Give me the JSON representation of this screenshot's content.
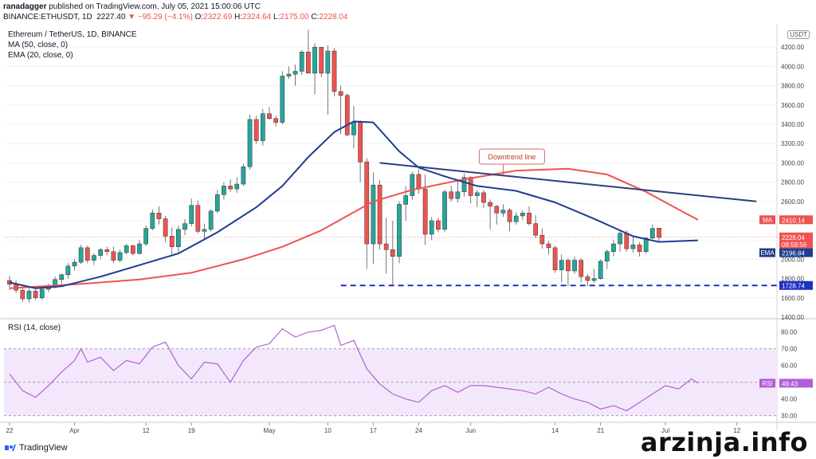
{
  "header": {
    "author": "ranadagger",
    "published": "published on TradingView.com, July 05, 2021 15:00:06 UTC",
    "symbol": "BINANCE:ETHUSDT, 1D",
    "last": "2227.40",
    "change": "−95.29 (−4.1%)",
    "o_label": "O:",
    "o_value": "2322.69",
    "h_label": "H:",
    "h_value": "2324.64",
    "l_label": "L:",
    "l_value": "2175.00",
    "c_label": "C:",
    "c_value": "2228.04"
  },
  "indicators": {
    "pair": "Ethereum / TetherUS, 1D, BINANCE",
    "ma": "MA (50, close, 0)",
    "ema": "EMA (20, close, 0)",
    "rsi": "RSI (14, close)"
  },
  "unit": "USDT",
  "annotation": "Downtrend line",
  "badges": {
    "ma_label": "MA",
    "ma_value": "2410.14",
    "price_value": "2228.04",
    "countdown": "08:59:56",
    "ema_label": "EMA",
    "ema_value": "2196.84",
    "support_value": "1728.74",
    "rsi_label": "RSI",
    "rsi_value": "49.43"
  },
  "logo_text": "TradingView",
  "watermark": "arzinja.info",
  "colors": {
    "up": "#26a69a",
    "down": "#ef5350",
    "ma": "#ef5350",
    "ema": "#1f3d8f",
    "trendline": "#2b3f7e",
    "support": "#1e2fc4",
    "rsi": "#b35fd9",
    "rsi_band": "#f3e8fb"
  },
  "chart_data": {
    "type": "candlestick",
    "price_axis_ticks": [
      1400,
      1600,
      1800,
      2000,
      2200,
      2400,
      2600,
      2800,
      3000,
      3200,
      3400,
      3600,
      3800,
      4000,
      4200
    ],
    "price_axis_labels": [
      "1400.00",
      "1600.00",
      "1800.00",
      "2000.00",
      "2200.00",
      "2400.00",
      "2600.00",
      "2800.00",
      "3000.00",
      "3200.00",
      "3400.00",
      "3600.00",
      "3800.00",
      "4000.00",
      "4200.00"
    ],
    "price_ylim": [
      1400,
      4400
    ],
    "rsi_axis_ticks": [
      30,
      40,
      50,
      60,
      70,
      80
    ],
    "rsi_axis_labels": [
      "30.00",
      "40.00",
      "50.00",
      "60.00",
      "70.00",
      "80.00"
    ],
    "rsi_ylim": [
      27,
      87
    ],
    "rsi_band": [
      30,
      70
    ],
    "x_axis_labels": [
      {
        "label": "22",
        "day": 0
      },
      {
        "label": "Apr",
        "day": 10
      },
      {
        "label": "12",
        "day": 21
      },
      {
        "label": "19",
        "day": 28
      },
      {
        "label": "May",
        "day": 40
      },
      {
        "label": "10",
        "day": 49
      },
      {
        "label": "17",
        "day": 56
      },
      {
        "label": "24",
        "day": 63
      },
      {
        "label": "Jun",
        "day": 71
      },
      {
        "label": "14",
        "day": 84
      },
      {
        "label": "21",
        "day": 91
      },
      {
        "label": "Jul",
        "day": 101
      },
      {
        "label": "12",
        "day": 112
      }
    ],
    "candles": [
      {
        "o": 1780,
        "h": 1830,
        "l": 1680,
        "c": 1740
      },
      {
        "o": 1740,
        "h": 1780,
        "l": 1650,
        "c": 1680
      },
      {
        "o": 1680,
        "h": 1720,
        "l": 1560,
        "c": 1590
      },
      {
        "o": 1590,
        "h": 1700,
        "l": 1550,
        "c": 1670
      },
      {
        "o": 1670,
        "h": 1710,
        "l": 1580,
        "c": 1600
      },
      {
        "o": 1600,
        "h": 1720,
        "l": 1580,
        "c": 1690
      },
      {
        "o": 1690,
        "h": 1750,
        "l": 1660,
        "c": 1710
      },
      {
        "o": 1710,
        "h": 1820,
        "l": 1700,
        "c": 1790
      },
      {
        "o": 1790,
        "h": 1850,
        "l": 1740,
        "c": 1840
      },
      {
        "o": 1840,
        "h": 1960,
        "l": 1800,
        "c": 1930
      },
      {
        "o": 1930,
        "h": 2000,
        "l": 1880,
        "c": 1970
      },
      {
        "o": 1970,
        "h": 2150,
        "l": 1950,
        "c": 2120
      },
      {
        "o": 2120,
        "h": 2140,
        "l": 1960,
        "c": 1990
      },
      {
        "o": 1990,
        "h": 2060,
        "l": 1940,
        "c": 2040
      },
      {
        "o": 2040,
        "h": 2120,
        "l": 2000,
        "c": 2100
      },
      {
        "o": 2100,
        "h": 2130,
        "l": 2040,
        "c": 2080
      },
      {
        "o": 2080,
        "h": 2130,
        "l": 1960,
        "c": 1990
      },
      {
        "o": 1990,
        "h": 2100,
        "l": 1970,
        "c": 2070
      },
      {
        "o": 2070,
        "h": 2160,
        "l": 2050,
        "c": 2140
      },
      {
        "o": 2140,
        "h": 2150,
        "l": 2040,
        "c": 2060
      },
      {
        "o": 2060,
        "h": 2200,
        "l": 2050,
        "c": 2160
      },
      {
        "o": 2160,
        "h": 2350,
        "l": 2140,
        "c": 2320
      },
      {
        "o": 2320,
        "h": 2520,
        "l": 2300,
        "c": 2480
      },
      {
        "o": 2480,
        "h": 2550,
        "l": 2360,
        "c": 2420
      },
      {
        "o": 2420,
        "h": 2450,
        "l": 2180,
        "c": 2240
      },
      {
        "o": 2240,
        "h": 2330,
        "l": 2050,
        "c": 2130
      },
      {
        "o": 2130,
        "h": 2350,
        "l": 2070,
        "c": 2310
      },
      {
        "o": 2310,
        "h": 2420,
        "l": 2250,
        "c": 2370
      },
      {
        "o": 2370,
        "h": 2630,
        "l": 2340,
        "c": 2560
      },
      {
        "o": 2560,
        "h": 2610,
        "l": 2270,
        "c": 2290
      },
      {
        "o": 2290,
        "h": 2370,
        "l": 2210,
        "c": 2310
      },
      {
        "o": 2310,
        "h": 2520,
        "l": 2290,
        "c": 2500
      },
      {
        "o": 2500,
        "h": 2720,
        "l": 2480,
        "c": 2670
      },
      {
        "o": 2670,
        "h": 2800,
        "l": 2620,
        "c": 2760
      },
      {
        "o": 2760,
        "h": 2830,
        "l": 2700,
        "c": 2730
      },
      {
        "o": 2730,
        "h": 2850,
        "l": 2690,
        "c": 2780
      },
      {
        "o": 2780,
        "h": 2990,
        "l": 2760,
        "c": 2960
      },
      {
        "o": 2960,
        "h": 3500,
        "l": 2930,
        "c": 3450
      },
      {
        "o": 3450,
        "h": 3490,
        "l": 3200,
        "c": 3230
      },
      {
        "o": 3230,
        "h": 3560,
        "l": 3180,
        "c": 3510
      },
      {
        "o": 3510,
        "h": 3580,
        "l": 3450,
        "c": 3460
      },
      {
        "o": 3460,
        "h": 3490,
        "l": 3380,
        "c": 3420
      },
      {
        "o": 3420,
        "h": 3950,
        "l": 3400,
        "c": 3900
      },
      {
        "o": 3900,
        "h": 4000,
        "l": 3870,
        "c": 3920
      },
      {
        "o": 3920,
        "h": 4020,
        "l": 3800,
        "c": 3950
      },
      {
        "o": 3950,
        "h": 4170,
        "l": 3910,
        "c": 4150
      },
      {
        "o": 4150,
        "h": 4380,
        "l": 3950,
        "c": 3930
      },
      {
        "o": 3930,
        "h": 4240,
        "l": 3710,
        "c": 4200
      },
      {
        "o": 4200,
        "h": 4200,
        "l": 3890,
        "c": 3930
      },
      {
        "o": 3930,
        "h": 4220,
        "l": 3500,
        "c": 4160
      },
      {
        "o": 4160,
        "h": 4190,
        "l": 3690,
        "c": 3740
      },
      {
        "o": 3740,
        "h": 3800,
        "l": 3300,
        "c": 3700
      },
      {
        "o": 3700,
        "h": 3720,
        "l": 3280,
        "c": 3290
      },
      {
        "o": 3290,
        "h": 3590,
        "l": 3150,
        "c": 3420
      },
      {
        "o": 3420,
        "h": 3440,
        "l": 2800,
        "c": 3010
      },
      {
        "o": 3010,
        "h": 3050,
        "l": 1900,
        "c": 2160
      },
      {
        "o": 2160,
        "h": 2900,
        "l": 1950,
        "c": 2770
      },
      {
        "o": 2770,
        "h": 2820,
        "l": 2100,
        "c": 2160
      },
      {
        "o": 2160,
        "h": 2430,
        "l": 1850,
        "c": 2100
      },
      {
        "o": 2100,
        "h": 2400,
        "l": 1730,
        "c": 2030
      },
      {
        "o": 2030,
        "h": 2600,
        "l": 1960,
        "c": 2570
      },
      {
        "o": 2570,
        "h": 2760,
        "l": 2400,
        "c": 2660
      },
      {
        "o": 2660,
        "h": 2910,
        "l": 2620,
        "c": 2880
      },
      {
        "o": 2880,
        "h": 2930,
        "l": 2680,
        "c": 2730
      },
      {
        "o": 2730,
        "h": 2880,
        "l": 2150,
        "c": 2260
      },
      {
        "o": 2260,
        "h": 2440,
        "l": 2200,
        "c": 2400
      },
      {
        "o": 2400,
        "h": 2430,
        "l": 2280,
        "c": 2310
      },
      {
        "o": 2310,
        "h": 2720,
        "l": 2280,
        "c": 2700
      },
      {
        "o": 2700,
        "h": 2760,
        "l": 2600,
        "c": 2630
      },
      {
        "o": 2630,
        "h": 2820,
        "l": 2590,
        "c": 2700
      },
      {
        "o": 2700,
        "h": 2890,
        "l": 2650,
        "c": 2850
      },
      {
        "o": 2850,
        "h": 2860,
        "l": 2580,
        "c": 2660
      },
      {
        "o": 2660,
        "h": 2720,
        "l": 2540,
        "c": 2690
      },
      {
        "o": 2690,
        "h": 2720,
        "l": 2530,
        "c": 2590
      },
      {
        "o": 2590,
        "h": 2620,
        "l": 2310,
        "c": 2550
      },
      {
        "o": 2550,
        "h": 2560,
        "l": 2360,
        "c": 2480
      },
      {
        "o": 2480,
        "h": 2570,
        "l": 2440,
        "c": 2510
      },
      {
        "o": 2510,
        "h": 2530,
        "l": 2290,
        "c": 2390
      },
      {
        "o": 2390,
        "h": 2490,
        "l": 2360,
        "c": 2450
      },
      {
        "o": 2450,
        "h": 2510,
        "l": 2410,
        "c": 2480
      },
      {
        "o": 2480,
        "h": 2550,
        "l": 2350,
        "c": 2370
      },
      {
        "o": 2370,
        "h": 2460,
        "l": 2220,
        "c": 2250
      },
      {
        "o": 2250,
        "h": 2320,
        "l": 2110,
        "c": 2160
      },
      {
        "o": 2160,
        "h": 2190,
        "l": 2050,
        "c": 2120
      },
      {
        "o": 2120,
        "h": 2140,
        "l": 1860,
        "c": 1890
      },
      {
        "o": 1890,
        "h": 2050,
        "l": 1760,
        "c": 1990
      },
      {
        "o": 1990,
        "h": 2010,
        "l": 1720,
        "c": 1880
      },
      {
        "o": 1880,
        "h": 2030,
        "l": 1850,
        "c": 1990
      },
      {
        "o": 1990,
        "h": 2010,
        "l": 1760,
        "c": 1820
      },
      {
        "o": 1820,
        "h": 1850,
        "l": 1720,
        "c": 1780
      },
      {
        "o": 1780,
        "h": 1900,
        "l": 1760,
        "c": 1800
      },
      {
        "o": 1800,
        "h": 2000,
        "l": 1790,
        "c": 1980
      },
      {
        "o": 1980,
        "h": 2100,
        "l": 1900,
        "c": 2080
      },
      {
        "o": 2080,
        "h": 2200,
        "l": 2030,
        "c": 2160
      },
      {
        "o": 2160,
        "h": 2290,
        "l": 2080,
        "c": 2270
      },
      {
        "o": 2270,
        "h": 2300,
        "l": 2080,
        "c": 2110
      },
      {
        "o": 2110,
        "h": 2240,
        "l": 2070,
        "c": 2150
      },
      {
        "o": 2150,
        "h": 2180,
        "l": 2030,
        "c": 2080
      },
      {
        "o": 2080,
        "h": 2230,
        "l": 2060,
        "c": 2220
      },
      {
        "o": 2220,
        "h": 2360,
        "l": 2210,
        "c": 2320
      },
      {
        "o": 2322.69,
        "h": 2324.64,
        "l": 2175,
        "c": 2228.04
      }
    ],
    "ma50": [
      {
        "d": 0,
        "v": 1700
      },
      {
        "d": 10,
        "v": 1740
      },
      {
        "d": 20,
        "v": 1790
      },
      {
        "d": 28,
        "v": 1860
      },
      {
        "d": 36,
        "v": 2000
      },
      {
        "d": 42,
        "v": 2130
      },
      {
        "d": 48,
        "v": 2300
      },
      {
        "d": 52,
        "v": 2450
      },
      {
        "d": 56,
        "v": 2600
      },
      {
        "d": 62,
        "v": 2720
      },
      {
        "d": 70,
        "v": 2830
      },
      {
        "d": 78,
        "v": 2920
      },
      {
        "d": 86,
        "v": 2940
      },
      {
        "d": 92,
        "v": 2880
      },
      {
        "d": 98,
        "v": 2700
      },
      {
        "d": 104,
        "v": 2480
      },
      {
        "d": 106,
        "v": 2410.14
      }
    ],
    "ema20": [
      {
        "d": 0,
        "v": 1760
      },
      {
        "d": 4,
        "v": 1700
      },
      {
        "d": 8,
        "v": 1720
      },
      {
        "d": 14,
        "v": 1820
      },
      {
        "d": 20,
        "v": 1940
      },
      {
        "d": 26,
        "v": 2060
      },
      {
        "d": 32,
        "v": 2280
      },
      {
        "d": 38,
        "v": 2540
      },
      {
        "d": 42,
        "v": 2760
      },
      {
        "d": 46,
        "v": 3060
      },
      {
        "d": 50,
        "v": 3320
      },
      {
        "d": 53,
        "v": 3430
      },
      {
        "d": 56,
        "v": 3420
      },
      {
        "d": 60,
        "v": 3120
      },
      {
        "d": 63,
        "v": 2950
      },
      {
        "d": 67,
        "v": 2860
      },
      {
        "d": 72,
        "v": 2760
      },
      {
        "d": 78,
        "v": 2710
      },
      {
        "d": 84,
        "v": 2590
      },
      {
        "d": 90,
        "v": 2420
      },
      {
        "d": 96,
        "v": 2240
      },
      {
        "d": 100,
        "v": 2180
      },
      {
        "d": 106,
        "v": 2196.84
      }
    ],
    "rsi": [
      {
        "d": 0,
        "v": 55
      },
      {
        "d": 2,
        "v": 45
      },
      {
        "d": 4,
        "v": 41
      },
      {
        "d": 6,
        "v": 48
      },
      {
        "d": 8,
        "v": 56
      },
      {
        "d": 10,
        "v": 63
      },
      {
        "d": 11,
        "v": 70
      },
      {
        "d": 12,
        "v": 62
      },
      {
        "d": 14,
        "v": 65
      },
      {
        "d": 16,
        "v": 57
      },
      {
        "d": 18,
        "v": 63
      },
      {
        "d": 20,
        "v": 61
      },
      {
        "d": 22,
        "v": 71
      },
      {
        "d": 24,
        "v": 74
      },
      {
        "d": 26,
        "v": 60
      },
      {
        "d": 28,
        "v": 52
      },
      {
        "d": 30,
        "v": 62
      },
      {
        "d": 32,
        "v": 61
      },
      {
        "d": 34,
        "v": 50
      },
      {
        "d": 36,
        "v": 63
      },
      {
        "d": 38,
        "v": 71
      },
      {
        "d": 40,
        "v": 73
      },
      {
        "d": 42,
        "v": 82
      },
      {
        "d": 44,
        "v": 77
      },
      {
        "d": 46,
        "v": 80
      },
      {
        "d": 48,
        "v": 81
      },
      {
        "d": 50,
        "v": 84
      },
      {
        "d": 51,
        "v": 72
      },
      {
        "d": 53,
        "v": 75
      },
      {
        "d": 55,
        "v": 58
      },
      {
        "d": 57,
        "v": 49
      },
      {
        "d": 59,
        "v": 43
      },
      {
        "d": 61,
        "v": 40
      },
      {
        "d": 63,
        "v": 38
      },
      {
        "d": 65,
        "v": 45
      },
      {
        "d": 67,
        "v": 48
      },
      {
        "d": 69,
        "v": 44
      },
      {
        "d": 71,
        "v": 48
      },
      {
        "d": 73,
        "v": 48
      },
      {
        "d": 75,
        "v": 47
      },
      {
        "d": 77,
        "v": 46
      },
      {
        "d": 79,
        "v": 45
      },
      {
        "d": 81,
        "v": 43
      },
      {
        "d": 83,
        "v": 47
      },
      {
        "d": 85,
        "v": 43
      },
      {
        "d": 87,
        "v": 40
      },
      {
        "d": 89,
        "v": 38
      },
      {
        "d": 91,
        "v": 34
      },
      {
        "d": 93,
        "v": 36
      },
      {
        "d": 95,
        "v": 33
      },
      {
        "d": 97,
        "v": 38
      },
      {
        "d": 99,
        "v": 43
      },
      {
        "d": 101,
        "v": 48
      },
      {
        "d": 103,
        "v": 46
      },
      {
        "d": 105,
        "v": 52
      },
      {
        "d": 106,
        "v": 49.43
      }
    ],
    "trendline": [
      {
        "d": 57,
        "v": 3000
      },
      {
        "d": 115,
        "v": 2600
      }
    ],
    "support": 1728.74
  }
}
